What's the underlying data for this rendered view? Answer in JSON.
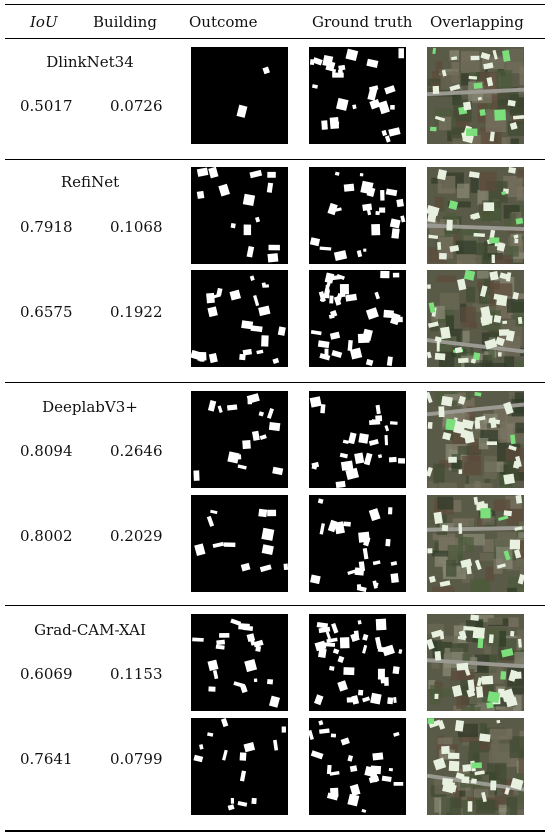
{
  "header": {
    "iou": "IoU",
    "building": "Building",
    "outcome": "Outcome",
    "ground_truth": "Ground truth",
    "overlapping": "Overlapping"
  },
  "groups": [
    {
      "model": "DlinkNet34",
      "rows": [
        {
          "iou": "0.5017",
          "building": "0.0726"
        }
      ]
    },
    {
      "model": "RefiNet",
      "rows": [
        {
          "iou": "0.7918",
          "building": "0.1068"
        },
        {
          "iou": "0.6575",
          "building": "0.1922"
        }
      ]
    },
    {
      "model": "DeeplabV3+",
      "rows": [
        {
          "iou": "0.8094",
          "building": "0.2646"
        },
        {
          "iou": "0.8002",
          "building": "0.2029"
        }
      ]
    },
    {
      "model": "Grad-CAM-XAI",
      "rows": [
        {
          "iou": "0.6069",
          "building": "0.1153"
        },
        {
          "iou": "0.7641",
          "building": "0.0799"
        }
      ]
    }
  ],
  "colors": {
    "mask_background": "#000000",
    "mask_building": "#ffffff",
    "overlap_true_positive": "#e8f0e0",
    "overlap_highlight": "#7be07b",
    "aerial_ground": "#5a5a48"
  }
}
